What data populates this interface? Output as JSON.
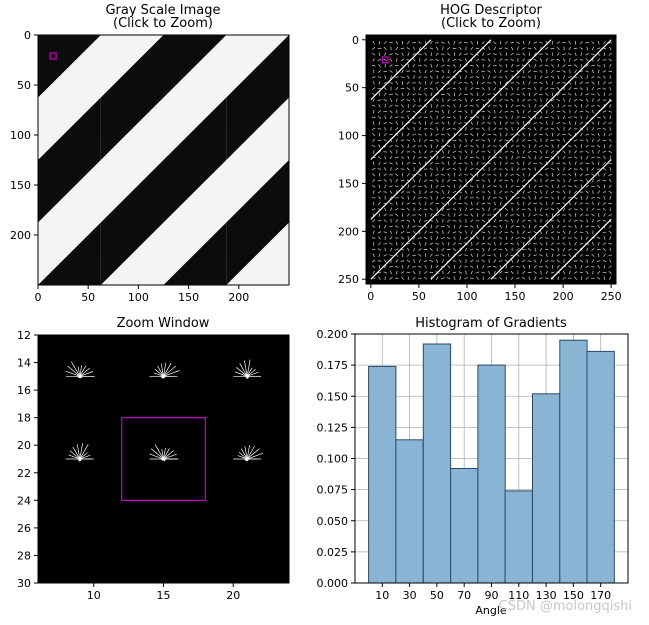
{
  "chart_data": [
    {
      "type": "image",
      "title": "Gray Scale Image",
      "subtitle": "(Click to Zoom)",
      "xticks": [
        0,
        50,
        100,
        150,
        200
      ],
      "yticks": [
        0,
        50,
        100,
        150,
        200
      ],
      "xlim": [
        0,
        250
      ],
      "ylim": [
        250,
        0
      ],
      "selection_box": {
        "x0": 12,
        "y0": 18,
        "x1": 18,
        "y1": 24,
        "color": "#cc00cc"
      }
    },
    {
      "type": "image",
      "title": "HOG Descriptor",
      "subtitle": "(Click to Zoom)",
      "xticks": [
        0,
        50,
        100,
        150,
        200,
        250
      ],
      "yticks": [
        0,
        50,
        100,
        150,
        200,
        250
      ],
      "xlim": [
        -5,
        255
      ],
      "ylim": [
        255,
        -5
      ],
      "selection_box": {
        "x0": 12,
        "y0": 18,
        "x1": 18,
        "y1": 24,
        "color": "#cc00cc"
      }
    },
    {
      "type": "image",
      "title": "Zoom Window",
      "xticks": [
        10,
        15,
        20
      ],
      "yticks": [
        12,
        14,
        16,
        18,
        20,
        22,
        24,
        26,
        28,
        30
      ],
      "xlim": [
        6,
        24
      ],
      "ylim": [
        30,
        12
      ],
      "cell_centers": [
        9,
        15,
        21
      ],
      "selection_box": {
        "x0": 12,
        "y0": 18,
        "x1": 18,
        "y1": 24,
        "color": "#cc00cc"
      }
    },
    {
      "type": "bar",
      "title": "Histogram of Gradients",
      "xlabel": "Angle",
      "categories": [
        "10",
        "30",
        "50",
        "70",
        "90",
        "110",
        "130",
        "150",
        "170"
      ],
      "values": [
        0.174,
        0.115,
        0.192,
        0.092,
        0.175,
        0.074,
        0.152,
        0.195,
        0.186
      ],
      "ylim": [
        0,
        0.2
      ],
      "yticks": [
        "0.000",
        "0.025",
        "0.050",
        "0.075",
        "0.100",
        "0.125",
        "0.150",
        "0.175",
        "0.200"
      ],
      "grid": true,
      "bar_color": "#8ab4d4",
      "edge_color": "#2a4a6a"
    }
  ],
  "watermark": "CSDN @molongqishi"
}
